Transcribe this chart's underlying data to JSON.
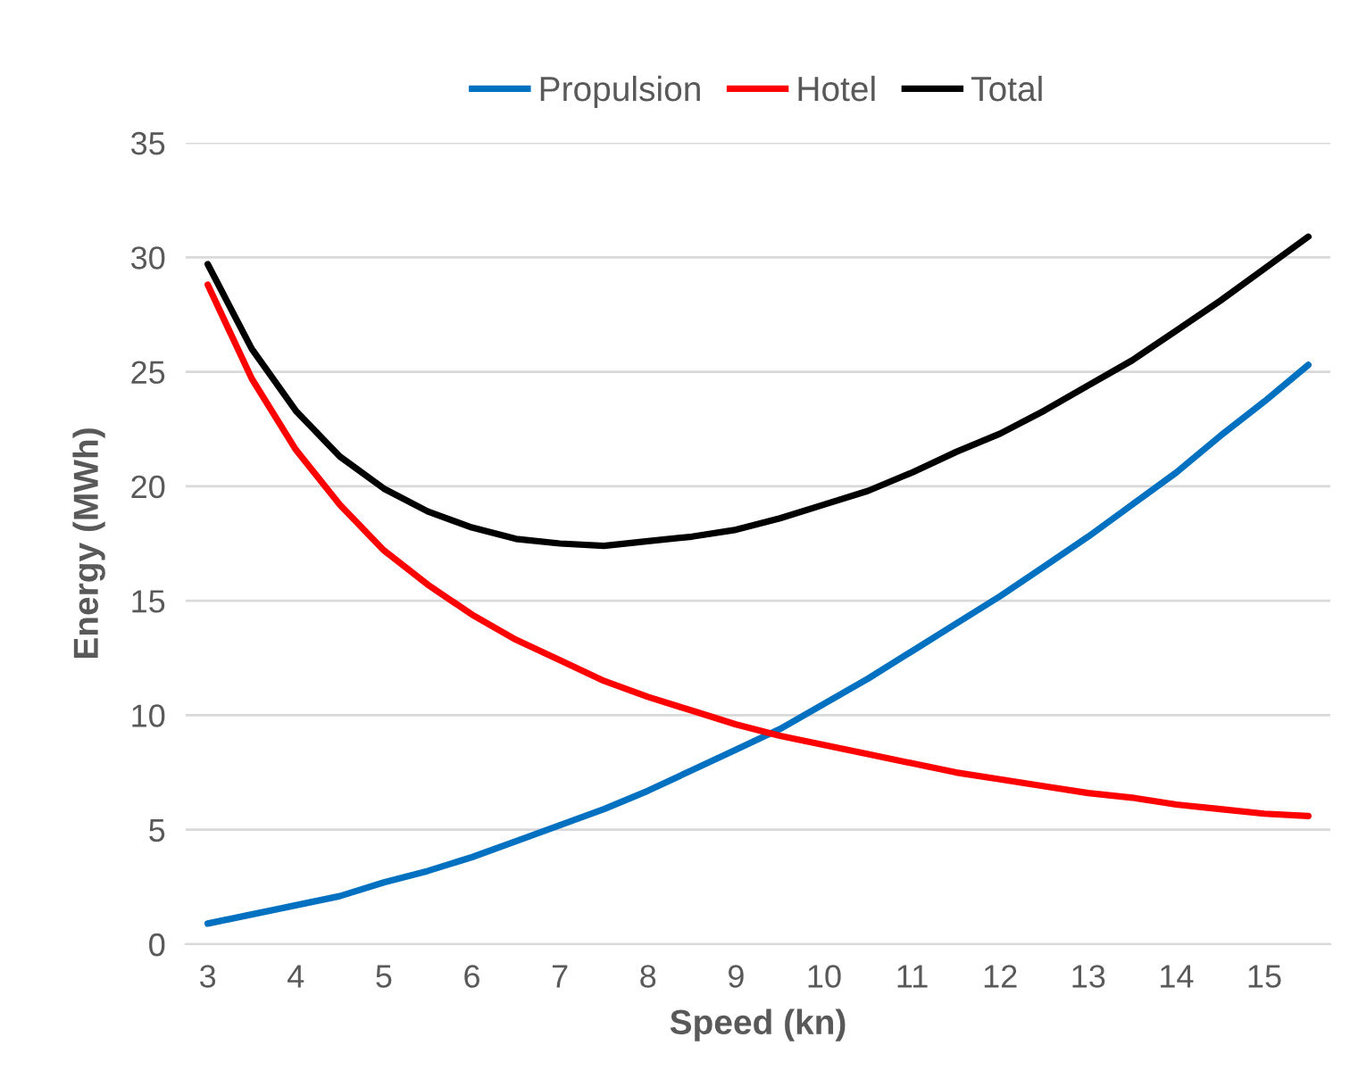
{
  "chart_data": {
    "type": "line",
    "xlabel": "Speed (kn)",
    "ylabel": "Energy (MWh)",
    "categories": [
      "3",
      null,
      "4",
      null,
      "5",
      null,
      "6",
      null,
      "7",
      null,
      "8",
      null,
      "9",
      null,
      "10",
      null,
      "11",
      null,
      "12",
      null,
      "13",
      null,
      "14",
      null,
      "15",
      null
    ],
    "series": [
      {
        "name": "Propulsion",
        "color": "#0070c0",
        "values": [
          0.9,
          1.3,
          1.7,
          2.1,
          2.7,
          3.2,
          3.8,
          4.5,
          5.2,
          5.9,
          6.7,
          7.6,
          8.5,
          9.4,
          10.5,
          11.6,
          12.8,
          14.0,
          15.2,
          16.5,
          17.8,
          19.2,
          20.6,
          22.2,
          23.7,
          25.3
        ]
      },
      {
        "name": "Hotel",
        "color": "#ff0000",
        "values": [
          28.8,
          24.7,
          21.6,
          19.2,
          17.2,
          15.7,
          14.4,
          13.3,
          12.4,
          11.5,
          10.8,
          10.2,
          9.6,
          9.1,
          8.7,
          8.3,
          7.9,
          7.5,
          7.2,
          6.9,
          6.6,
          6.4,
          6.1,
          5.9,
          5.7,
          5.6
        ]
      },
      {
        "name": "Total",
        "color": "#000000",
        "values": [
          29.7,
          26.0,
          23.3,
          21.3,
          19.9,
          18.9,
          18.2,
          17.7,
          17.5,
          17.4,
          17.6,
          17.8,
          18.1,
          18.6,
          19.2,
          19.8,
          20.6,
          21.5,
          22.3,
          23.3,
          24.4,
          25.5,
          26.8,
          28.1,
          29.5,
          30.9
        ]
      }
    ],
    "ylim": [
      0,
      35
    ],
    "yticks": [
      0,
      5,
      10,
      15,
      20,
      25,
      30,
      35
    ],
    "grid": "y",
    "legend": "top",
    "marker": "none",
    "line_style": "solid"
  }
}
